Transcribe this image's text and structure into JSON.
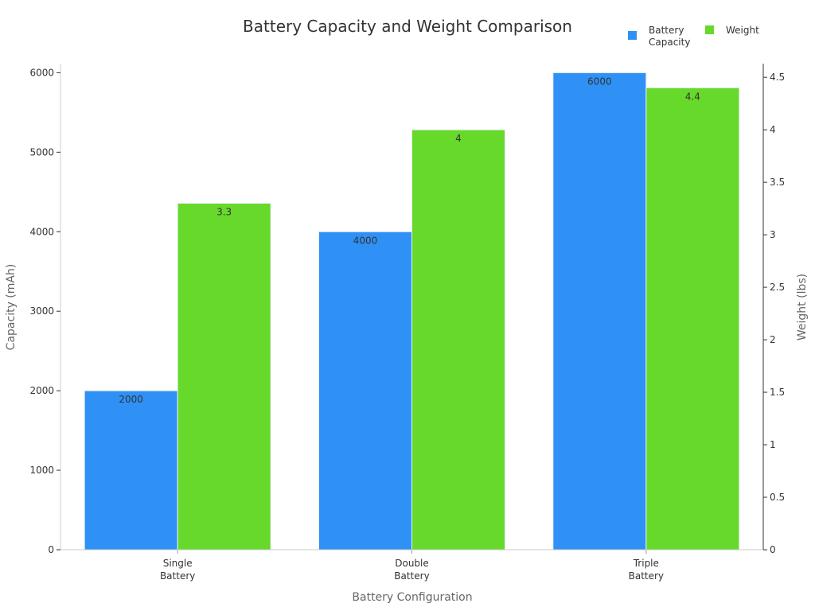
{
  "chart_data": {
    "type": "bar",
    "title": "Battery Capacity and Weight Comparison",
    "xlabel": "Battery Configuration",
    "ylabel": "Capacity (mAh)",
    "y2label": "Weight (lbs)",
    "categories": [
      [
        "Single",
        "Battery"
      ],
      [
        "Double",
        "Battery"
      ],
      [
        "Triple",
        "Battery"
      ]
    ],
    "series": [
      {
        "name": "Battery Capacity",
        "legend_lines": [
          "Battery",
          "Capacity"
        ],
        "axis": "left",
        "color": "#2f91f5",
        "values": [
          2000,
          4000,
          6000
        ],
        "labels": [
          "2000",
          "4000",
          "6000"
        ]
      },
      {
        "name": "Weight",
        "legend_lines": [
          "Weight"
        ],
        "axis": "right",
        "color": "#66d92a",
        "values": [
          3.3,
          4,
          4.4
        ],
        "labels": [
          "3.3",
          "4",
          "4.4"
        ]
      }
    ],
    "ylim": [
      0,
      6114
    ],
    "y2lim": [
      0,
      4.63
    ],
    "yticks": [
      0,
      1000,
      2000,
      3000,
      4000,
      5000,
      6000
    ],
    "y2ticks": [
      0,
      0.5,
      1,
      1.5,
      2,
      2.5,
      3,
      3.5,
      4,
      4.5
    ],
    "grid": false,
    "legend_position": "top-right"
  }
}
